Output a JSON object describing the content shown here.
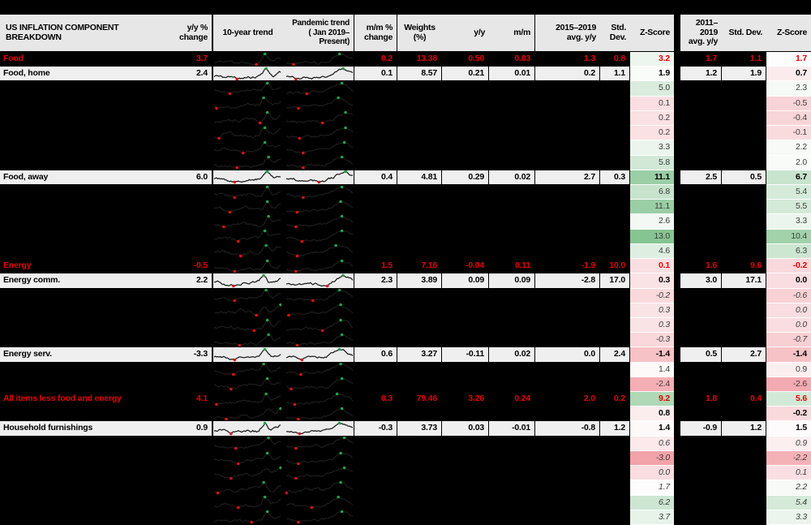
{
  "header": {
    "title": "US INFLATION COMPONENT BREAKDOWN",
    "yy_change": "y/y %\nchange",
    "trend10": "10-year trend",
    "trend_pandemic": "Pandemic trend\n( Jan 2019–Present)",
    "mm_change": "m/m %\nchange",
    "weights": "Weights\n(%)",
    "yy": "y/y",
    "mm": "m/m",
    "avg1": "2015–2019\navg. y/y",
    "sd1": "Std. Dev.",
    "z1": "Z-Score",
    "avg2": "2011–2019\navg. y/y",
    "sd2": "Std. Dev.",
    "z2": "Z-Score"
  },
  "colors": {
    "accent_red": "#e60000",
    "row_gray": "#efefef",
    "header_gray": "#e7e7e7",
    "z_green_full": "#84c490",
    "z_pink_full": "#f29ea5",
    "z_mid_white": "#fdfdfd",
    "spark_line": "#1c1c1c",
    "spark_high_marker": "#21a04c",
    "spark_low_marker": "#e01010"
  },
  "chart_data": {
    "type": "table",
    "title": "US INFLATION COMPONENT BREAKDOWN",
    "sparkline_columns": [
      "10-year trend",
      "Pandemic trend (Jan 2019–Present)"
    ],
    "columns": [
      "label",
      "y/y % change",
      "m/m % change",
      "Weights (%)",
      "y/y",
      "m/m",
      "2015–2019 avg. y/y",
      "Std. Dev.",
      "Z-Score",
      "2011–2019 avg. y/y",
      "Std. Dev.",
      "Z-Score"
    ],
    "zscore_scale": {
      "white_midpoint": 1.6,
      "pink_at": -3.2,
      "green_at": 13.2
    },
    "rows": [
      {
        "kind": "section",
        "label": "Food",
        "yy": "3.7",
        "mmchg": "0.2",
        "w": "13.38",
        "yoy": "0.50",
        "mom": "0.03",
        "a1": "1.3",
        "s1": "0.8",
        "z1": "3.2",
        "a2": "1.7",
        "s2": "1.1",
        "z2": "1.7"
      },
      {
        "kind": "item",
        "label": "Food, home",
        "yy": "2.4",
        "mmchg": "0.1",
        "w": "8.57",
        "yoy": "0.21",
        "mom": "0.01",
        "a1": "0.2",
        "s1": "1.1",
        "z1": "1.9",
        "a2": "1.2",
        "s2": "1.9",
        "z2": "0.7"
      },
      {
        "kind": "hidden",
        "z1": "5.0",
        "z2": "2.3"
      },
      {
        "kind": "hidden",
        "z1": "0.1",
        "z2": "-0.5"
      },
      {
        "kind": "hidden",
        "z1": "0.2",
        "z2": "-0.4"
      },
      {
        "kind": "hidden",
        "z1": "0.2",
        "z2": "-0.1"
      },
      {
        "kind": "hidden",
        "z1": "3.3",
        "z2": "2.2"
      },
      {
        "kind": "hidden",
        "z1": "5.8",
        "z2": "2.0"
      },
      {
        "kind": "item",
        "label": "Food, away",
        "yy": "6.0",
        "mmchg": "0.4",
        "w": "4.81",
        "yoy": "0.29",
        "mom": "0.02",
        "a1": "2.7",
        "s1": "0.3",
        "z1": "11.1",
        "a2": "2.5",
        "s2": "0.5",
        "z2": "6.7"
      },
      {
        "kind": "hidden",
        "z1": "6.8",
        "z2": "5.4"
      },
      {
        "kind": "hidden",
        "z1": "11.1",
        "z2": "5.5"
      },
      {
        "kind": "hidden",
        "z1": "2.6",
        "z2": "3.3"
      },
      {
        "kind": "hidden",
        "z1": "13.0",
        "z2": "10.4"
      },
      {
        "kind": "hidden",
        "z1": "4.6",
        "z2": "6.3"
      },
      {
        "kind": "section",
        "label": "Energy",
        "yy": "-0.5",
        "mmchg": "1.5",
        "w": "7.16",
        "yoy": "-0.04",
        "mom": "0.11",
        "a1": "-1.9",
        "s1": "10.0",
        "z1": "0.1",
        "a2": "1.6",
        "s2": "9.6",
        "z2": "-0.2"
      },
      {
        "kind": "item",
        "label": "Energy comm.",
        "yy": "2.2",
        "mmchg": "2.3",
        "w": "3.89",
        "yoy": "0.09",
        "mom": "0.09",
        "a1": "-2.8",
        "s1": "17.0",
        "z1": "0.3",
        "a2": "3.0",
        "s2": "17.1",
        "z2": "0.0"
      },
      {
        "kind": "hidden",
        "em": true,
        "z1": "-0.2",
        "z2": "-0.6"
      },
      {
        "kind": "hidden",
        "em": true,
        "z1": "0.3",
        "z2": "0.0"
      },
      {
        "kind": "hidden",
        "em": true,
        "z1": "0.3",
        "z2": "0.0"
      },
      {
        "kind": "hidden",
        "em": true,
        "z1": "-0.3",
        "z2": "-0.7"
      },
      {
        "kind": "item",
        "label": "Energy serv.",
        "yy": "-3.3",
        "mmchg": "0.6",
        "w": "3.27",
        "yoy": "-0.11",
        "mom": "0.02",
        "a1": "0.0",
        "s1": "2.4",
        "z1": "-1.4",
        "a2": "0.5",
        "s2": "2.7",
        "z2": "-1.4"
      },
      {
        "kind": "hidden",
        "z1": "1.4",
        "z2": "0.9"
      },
      {
        "kind": "hidden",
        "z1": "-2.4",
        "z2": "-2.6"
      },
      {
        "kind": "section",
        "label": "All items less food and energy",
        "yy": "4.1",
        "mmchg": "0.3",
        "w": "79.46",
        "yoy": "3.26",
        "mom": "0.24",
        "a1": "2.0",
        "s1": "0.2",
        "z1": "9.2",
        "a2": "1.8",
        "s2": "0.4",
        "z2": "5.6"
      },
      {
        "kind": "hidden",
        "strong": true,
        "z1": "0.8",
        "z2": "-0.2"
      },
      {
        "kind": "item",
        "label": "Household furnishings",
        "yy": "0.9",
        "mmchg": "-0.3",
        "w": "3.73",
        "yoy": "0.03",
        "mom": "-0.01",
        "a1": "-0.8",
        "s1": "1.2",
        "z1": "1.4",
        "a2": "-0.9",
        "s2": "1.2",
        "z2": "1.5"
      },
      {
        "kind": "hidden",
        "em": true,
        "z1": "0.6",
        "z2": "0.9"
      },
      {
        "kind": "hidden",
        "em": true,
        "z1": "-3.0",
        "z2": "-2.2"
      },
      {
        "kind": "hidden",
        "em": true,
        "z1": "0.0",
        "z2": "0.1"
      },
      {
        "kind": "hidden",
        "em": true,
        "z1": "1.7",
        "z2": "2.2"
      },
      {
        "kind": "hidden",
        "em": true,
        "z1": "6.2",
        "z2": "5.4"
      },
      {
        "kind": "hidden",
        "em": true,
        "z1": "3.7",
        "z2": "3.3"
      }
    ]
  }
}
